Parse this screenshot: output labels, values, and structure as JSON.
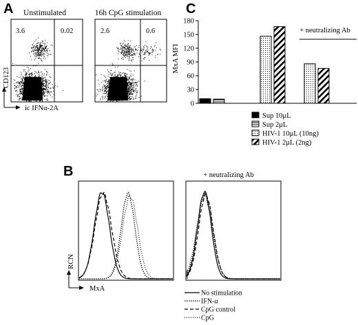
{
  "panels": {
    "a": "A",
    "b": "B",
    "c": "C"
  },
  "panel_a": {
    "plots": [
      {
        "title": "Unstimulated",
        "upper_left": "3.6",
        "upper_right": "0.02"
      },
      {
        "title": "16h CpG stimulation",
        "upper_left": "2.6",
        "upper_right": "0.6"
      }
    ],
    "y_axis_label": "CD123",
    "x_axis_label": "ic IFNα-2A"
  },
  "panel_b": {
    "right_title": "+ neutralizing Ab",
    "y_axis_label": "RCN",
    "x_axis_label": "MxA",
    "legend": [
      {
        "label": "No stimulation",
        "style": "solid"
      },
      {
        "label": "IFN-α",
        "style": "dotted"
      },
      {
        "label": "CpG control",
        "style": "dashed"
      },
      {
        "label": "CpG",
        "style": "fine-dotted"
      }
    ]
  },
  "chart_data": {
    "type": "bar",
    "title": "",
    "ylabel": "MxA MFI",
    "ylim": [
      0,
      180
    ],
    "yticks": [
      "0",
      "30",
      "60",
      "90",
      "120",
      "150",
      "180"
    ],
    "grid": false,
    "bracket_label": "+ neutralizing Ab",
    "series": [
      {
        "name": "Sup 10μL",
        "fill": "solid-black"
      },
      {
        "name": "Sup 2μL",
        "fill": "horizontal-stripes"
      },
      {
        "name": "HIV-1 10μL (10ng)",
        "fill": "dots"
      },
      {
        "name": "HIV-1 2μL (2ng)",
        "fill": "diagonal-stripes"
      }
    ],
    "groups": [
      {
        "neutralizing_ab": false,
        "bars": [
          {
            "series": "Sup 10μL",
            "value": 10
          },
          {
            "series": "Sup 2μL",
            "value": 9
          }
        ]
      },
      {
        "neutralizing_ab": false,
        "bars": [
          {
            "series": "HIV-1 10μL (10ng)",
            "value": 146
          },
          {
            "series": "HIV-1 2μL (2ng)",
            "value": 167
          }
        ]
      },
      {
        "neutralizing_ab": true,
        "bars": [
          {
            "series": "HIV-1 10μL (10ng)",
            "value": 86
          },
          {
            "series": "HIV-1 2μL (2ng)",
            "value": 76
          }
        ]
      }
    ]
  }
}
